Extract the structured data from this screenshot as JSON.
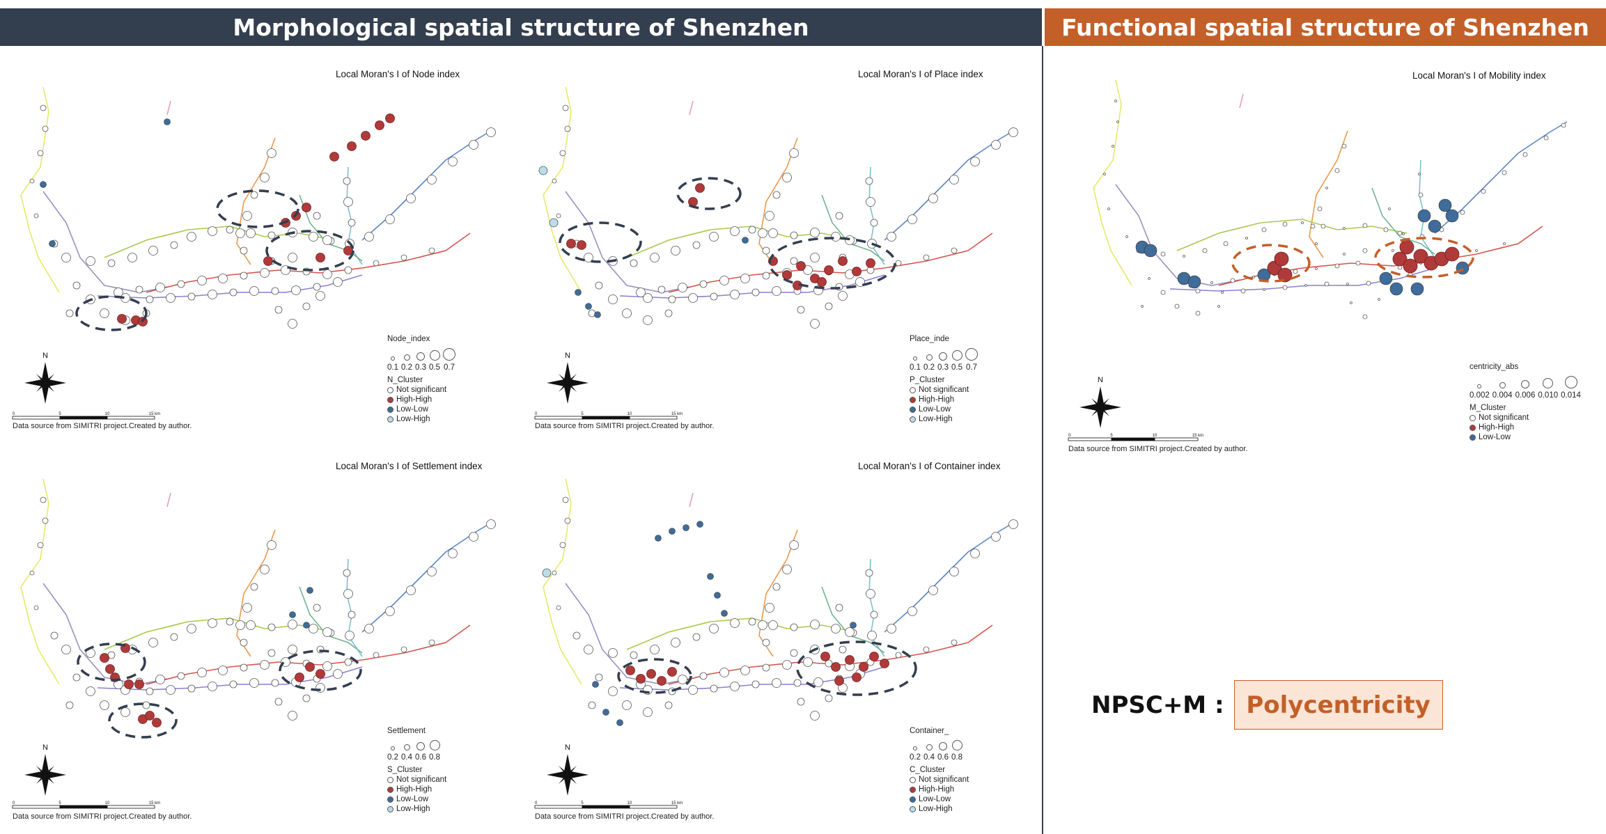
{
  "banners": {
    "left": "Morphological spatial structure of Shenzhen",
    "right": "Functional spatial structure of Shenzhen"
  },
  "colors": {
    "banner_left": "#333e4e",
    "banner_right": "#c35f28",
    "high_high": "#b03a3a",
    "low_low": "#3f6c9a",
    "low_high": "#bcdcea",
    "not_significant": "#ffffff",
    "ellipse_dark": "#333e4e",
    "ellipse_orange": "#c35f28"
  },
  "source_note": "Data source from SIMITRI project.Created by author.",
  "panels": {
    "node": {
      "title": "Local Moran's I of Node index",
      "size_title": "Node_index",
      "size_values": [
        "0.1",
        "0.2",
        "0.3",
        "0.5",
        "0.7"
      ],
      "cluster_title": "N_Cluster",
      "clusters": [
        "Not significant",
        "High-High",
        "Low-Low",
        "Low-High"
      ],
      "scale": [
        "0",
        "5",
        "10",
        "15 km"
      ]
    },
    "place": {
      "title": "Local Moran's I of Place index",
      "size_title": "Place_inde",
      "size_values": [
        "0.1",
        "0.2",
        "0.3",
        "0.5",
        "0.7"
      ],
      "cluster_title": "P_Cluster",
      "clusters": [
        "Not significant",
        "High-High",
        "Low-Low",
        "Low-High"
      ],
      "scale": [
        "0",
        "5",
        "10",
        "15 km"
      ]
    },
    "settlement": {
      "title": "Local Moran's I of Settlement index",
      "size_title": "Settlement",
      "size_values": [
        "0.2",
        "0.4",
        "0.6",
        "0.8"
      ],
      "cluster_title": "S_Cluster",
      "clusters": [
        "Not significant",
        "High-High",
        "Low-Low",
        "Low-High"
      ],
      "scale": [
        "0",
        "5",
        "10",
        "15 km"
      ]
    },
    "container": {
      "title": "Local Moran's I of Container index",
      "size_title": "Container_",
      "size_values": [
        "0.2",
        "0.4",
        "0.6",
        "0.8"
      ],
      "cluster_title": "C_Cluster",
      "clusters": [
        "Not significant",
        "High-High",
        "Low-Low",
        "Low-High"
      ],
      "scale": [
        "0",
        "5",
        "10",
        "15 km"
      ]
    },
    "mobility": {
      "title": "Local Moran's I of Mobility index",
      "size_title": "centricity_abs",
      "size_values": [
        "0.002",
        "0.004",
        "0.006",
        "0.010",
        "0.014"
      ],
      "cluster_title": "M_Cluster",
      "clusters": [
        "Not significant",
        "High-High",
        "Low-Low"
      ],
      "scale": [
        "0",
        "5",
        "10",
        "15 km"
      ]
    }
  },
  "north_label": "N",
  "npsc": {
    "label": "NPSC+M :",
    "value": "Polycentricity"
  }
}
